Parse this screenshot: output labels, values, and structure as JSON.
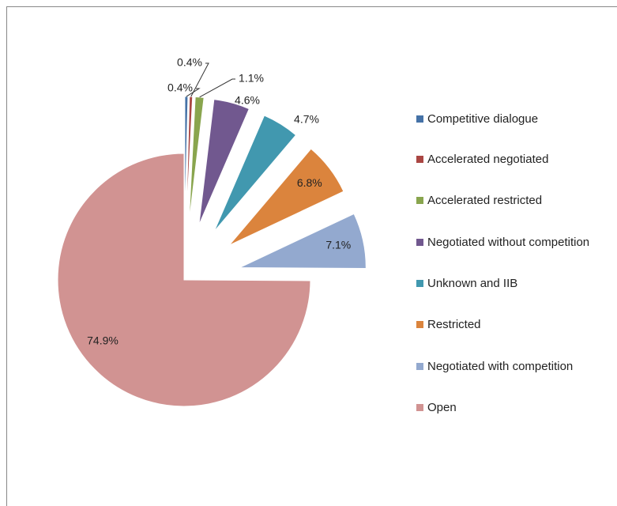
{
  "chart_data": {
    "type": "pie",
    "categories": [
      "Competitive dialogue",
      "Accelerated negotiated",
      "Accelerated restricted",
      "Negotiated without competition",
      "Unknown and IIB",
      "Restricted",
      "Negotiated with competition",
      "Open"
    ],
    "values": [
      0.4,
      0.4,
      1.1,
      4.6,
      4.7,
      6.8,
      7.1,
      74.9
    ],
    "value_labels": [
      "0.4%",
      "0.4%",
      "1.1%",
      "4.6%",
      "4.7%",
      "6.8%",
      "7.1%",
      "74.9%"
    ],
    "colors": [
      "#4572a7",
      "#aa4643",
      "#89a54e",
      "#71588f",
      "#4198af",
      "#db843d",
      "#93a9cf",
      "#d19392"
    ],
    "legend": "right"
  }
}
